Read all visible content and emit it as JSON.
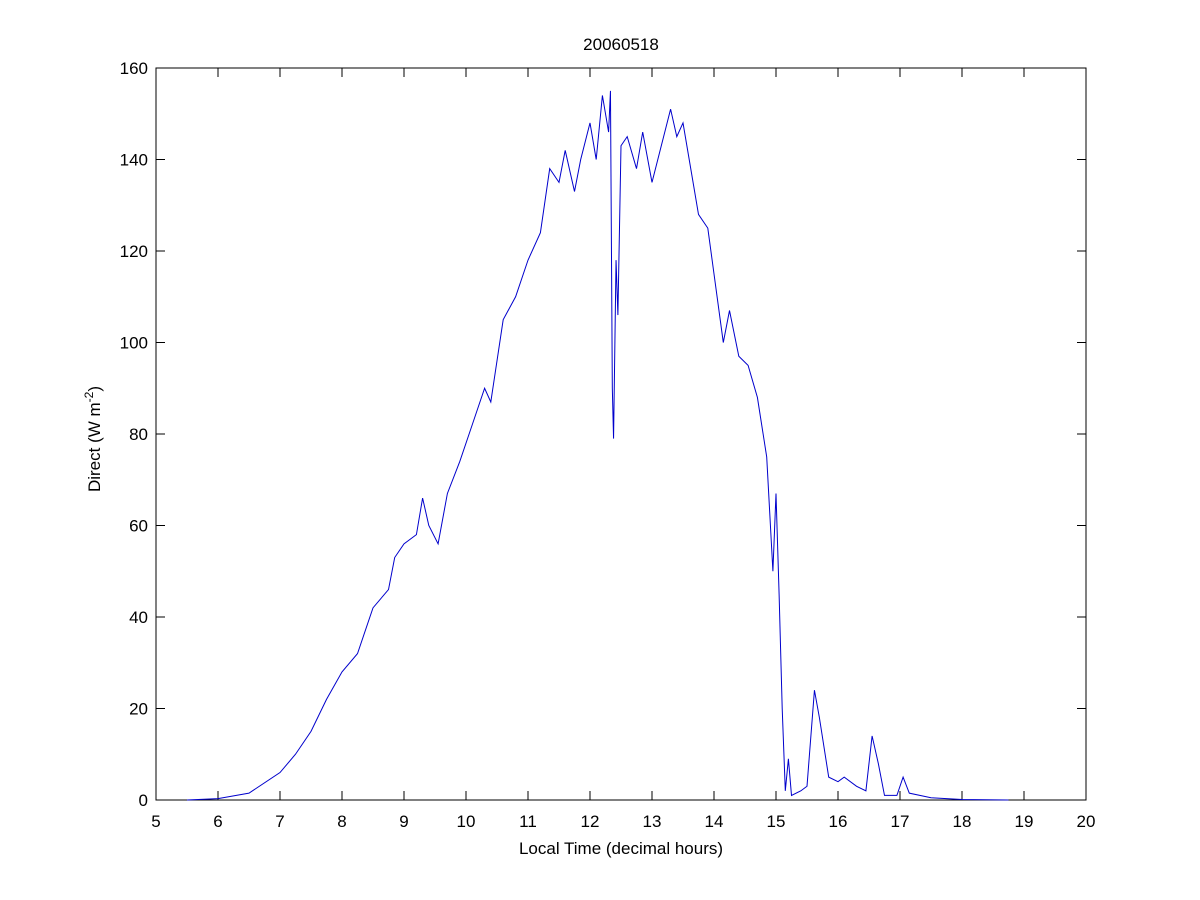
{
  "chart_data": {
    "type": "line",
    "title": "20060518",
    "xlabel": "Local Time (decimal hours)",
    "ylabel": {
      "text": "Direct (W m",
      "superscript": "-2",
      "suffix": ")"
    },
    "xlim": [
      5,
      20
    ],
    "ylim": [
      0,
      160
    ],
    "xticks": [
      5,
      6,
      7,
      8,
      9,
      10,
      11,
      12,
      13,
      14,
      15,
      16,
      17,
      18,
      19,
      20
    ],
    "yticks": [
      0,
      20,
      40,
      60,
      80,
      100,
      120,
      140,
      160
    ],
    "x": [
      5.5,
      6.0,
      6.5,
      7.0,
      7.25,
      7.5,
      7.75,
      8.0,
      8.25,
      8.5,
      8.75,
      8.85,
      9.0,
      9.2,
      9.3,
      9.4,
      9.55,
      9.7,
      9.9,
      10.1,
      10.3,
      10.4,
      10.6,
      10.8,
      11.0,
      11.2,
      11.35,
      11.5,
      11.6,
      11.75,
      11.85,
      12.0,
      12.1,
      12.2,
      12.3,
      12.33,
      12.36,
      12.38,
      12.42,
      12.45,
      12.5,
      12.6,
      12.75,
      12.85,
      13.0,
      13.15,
      13.3,
      13.4,
      13.5,
      13.6,
      13.75,
      13.9,
      14.0,
      14.15,
      14.25,
      14.4,
      14.55,
      14.7,
      14.85,
      14.95,
      15.0,
      15.05,
      15.1,
      15.15,
      15.2,
      15.25,
      15.4,
      15.5,
      15.62,
      15.7,
      15.85,
      16.0,
      16.1,
      16.3,
      16.45,
      16.55,
      16.65,
      16.75,
      16.95,
      17.05,
      17.15,
      17.5,
      18.0,
      18.75
    ],
    "series": [
      {
        "name": "Direct",
        "color": "#0000cc",
        "values": [
          0,
          0.3,
          1.5,
          6,
          10,
          15,
          22,
          28,
          32,
          42,
          46,
          53,
          56,
          58,
          66,
          60,
          56,
          67,
          74,
          82,
          90,
          87,
          105,
          110,
          118,
          124,
          138,
          135,
          142,
          133,
          140,
          148,
          140,
          154,
          146,
          155,
          90,
          79,
          118,
          106,
          143,
          145,
          138,
          146,
          135,
          143,
          151,
          145,
          148,
          140,
          128,
          125,
          115,
          100,
          107,
          97,
          95,
          88,
          75,
          50,
          67,
          45,
          20,
          2,
          9,
          1,
          2,
          3,
          24,
          18,
          5,
          4,
          5,
          3,
          2,
          14,
          8,
          1,
          1,
          5,
          1.5,
          0.5,
          0.1,
          0
        ]
      }
    ]
  }
}
